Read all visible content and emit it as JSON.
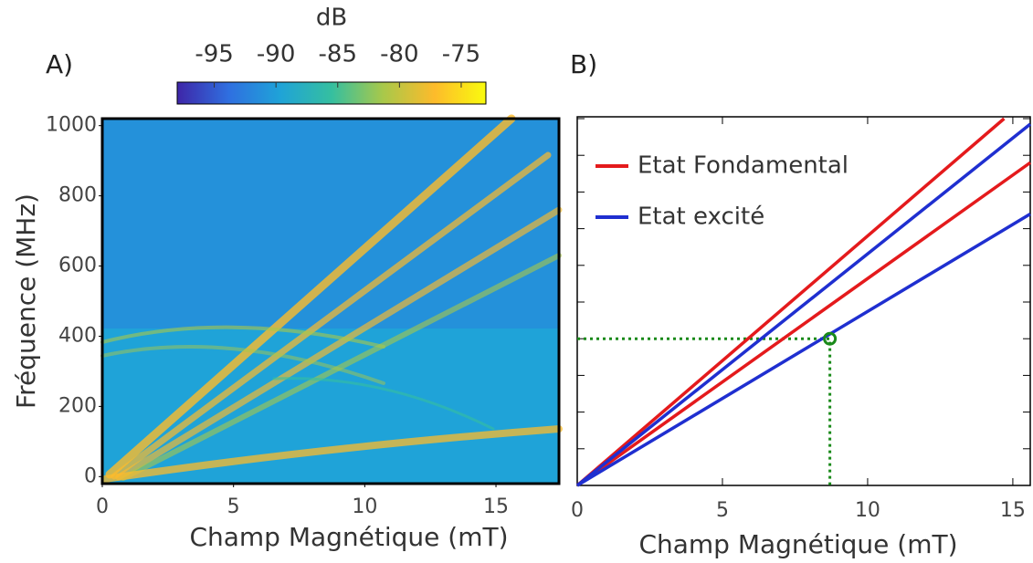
{
  "chart_data": [
    {
      "type": "heatmap",
      "panel_label": "A)",
      "xlabel": "Champ Magnétique (mT)",
      "ylabel": "Fréquence (MHz)",
      "xlim": [
        0,
        17.4
      ],
      "xticks": [
        0,
        5,
        10,
        15
      ],
      "ylim": [
        -20,
        1020
      ],
      "yticks": [
        0,
        200,
        400,
        600,
        800,
        1000
      ],
      "colorbar_label": "dB",
      "clim": [
        -98,
        -73
      ],
      "colorbar_ticks": [
        -95,
        -90,
        -85,
        -80,
        -75
      ],
      "colormap": [
        "#3e26a8",
        "#2f6fe0",
        "#1fa3d8",
        "#35bfa0",
        "#a8c84a",
        "#fdbb2b",
        "#f9fb0e"
      ]
    },
    {
      "type": "line",
      "panel_label": "B)",
      "xlabel": "Champ Magnétique (mT)",
      "xlim": [
        0,
        15.6
      ],
      "xticks": [
        0,
        5,
        10,
        15
      ],
      "ylim": [
        0,
        1005
      ],
      "yticks": [
        0,
        100,
        200,
        300,
        400,
        500,
        600,
        700,
        800,
        900,
        1000
      ],
      "series": [
        {
          "name": "Etat Fondamental",
          "color": "#e41a1c",
          "lines": [
            {
              "x": [
                0,
                14.7
              ],
              "values": [
                0,
                1000
              ]
            },
            {
              "x": [
                0,
                15.6
              ],
              "values": [
                0,
                880
              ]
            }
          ]
        },
        {
          "name": "Etat excité",
          "color": "#1f2fd0",
          "lines": [
            {
              "x": [
                0,
                15.6
              ],
              "values": [
                0,
                985
              ]
            },
            {
              "x": [
                0,
                15.6
              ],
              "values": [
                0,
                740
              ]
            }
          ]
        }
      ],
      "guide": {
        "x": 8.7,
        "y": 400,
        "color": "#1a8a1a"
      }
    }
  ]
}
